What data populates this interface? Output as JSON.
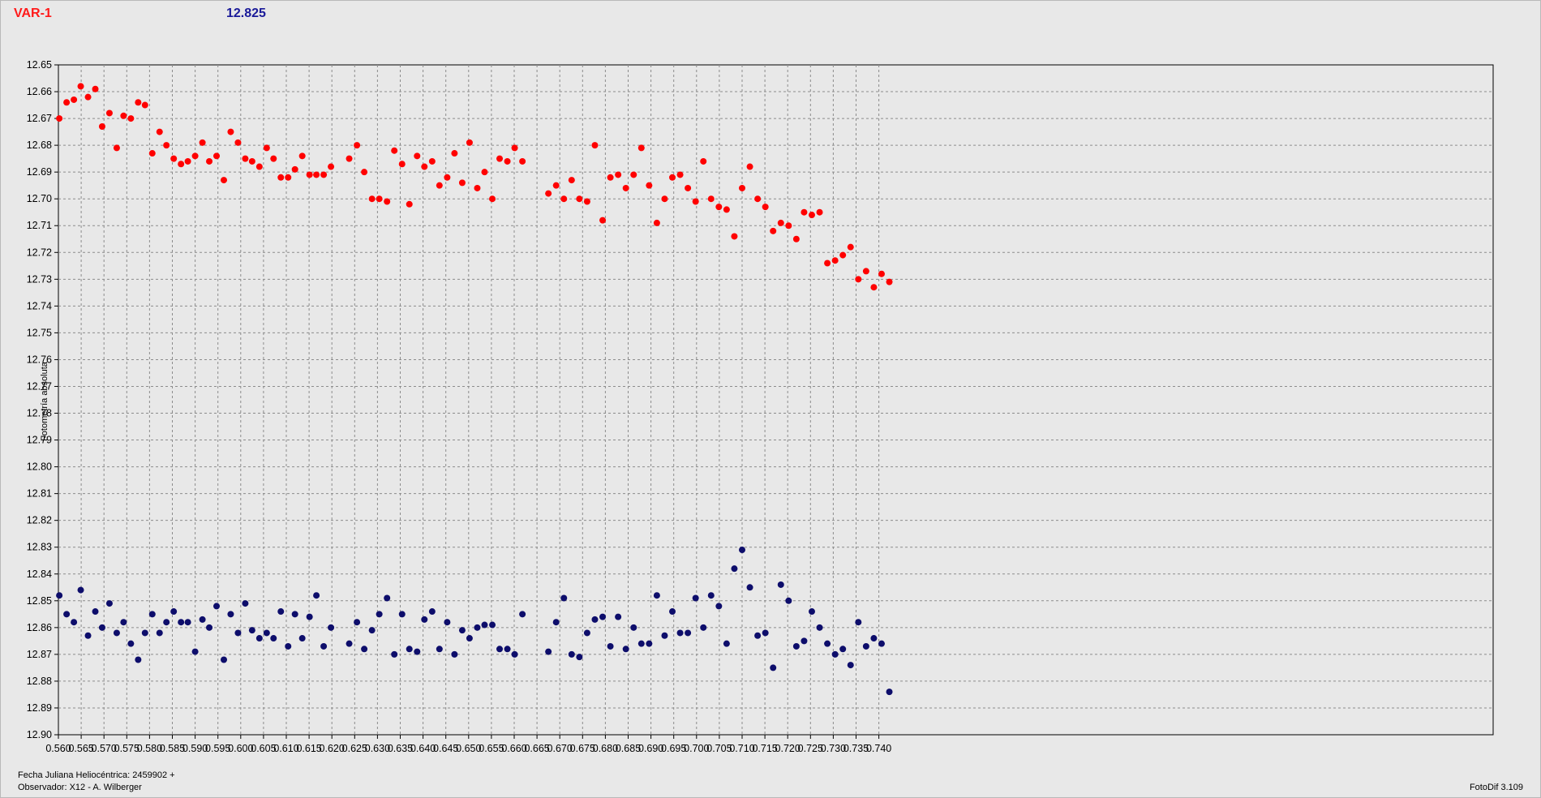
{
  "header": {
    "variable_label": "VAR-1",
    "reference_value": "12.825"
  },
  "footer": {
    "date_label": "Fecha Juliana Heliocéntrica: 2459902 +",
    "observer_label": "Observador: X12 - A. Wilberger",
    "software": "FotoDif 3.109"
  },
  "colors": {
    "variable_series": "#ff0000",
    "comparison_series": "#0d0d6b",
    "grid": "#8c8c8c",
    "background": "#e8e8e8"
  },
  "chart_data": {
    "type": "scatter",
    "ylabel": "Fotometría absoluta",
    "xlim": [
      0.56,
      0.7435
    ],
    "ylim": [
      12.65,
      12.9
    ],
    "y_inverted": true,
    "grid": true,
    "x_ticks": [
      "0.560",
      "0.565",
      "0.570",
      "0.575",
      "0.580",
      "0.585",
      "0.590",
      "0.595",
      "0.600",
      "0.605",
      "0.610",
      "0.615",
      "0.620",
      "0.625",
      "0.630",
      "0.635",
      "0.640",
      "0.645",
      "0.650",
      "0.655",
      "0.660",
      "0.665",
      "0.670",
      "0.675",
      "0.680",
      "0.685",
      "0.690",
      "0.695",
      "0.700",
      "0.705",
      "0.710",
      "0.715",
      "0.720",
      "0.725",
      "0.730",
      "0.735",
      "0.740"
    ],
    "y_ticks": [
      "12.65",
      "12.66",
      "12.67",
      "12.68",
      "12.69",
      "12.70",
      "12.71",
      "12.72",
      "12.73",
      "12.74",
      "12.75",
      "12.76",
      "12.77",
      "12.78",
      "12.79",
      "12.80",
      "12.81",
      "12.82",
      "12.83",
      "12.84",
      "12.85",
      "12.86",
      "12.87",
      "12.88",
      "12.89",
      "12.90"
    ],
    "series": [
      {
        "color": "#ff0000",
        "x": [
          0.5602,
          0.5618,
          0.5634,
          0.5649,
          0.5665,
          0.5681,
          0.5696,
          0.5712,
          0.5728,
          0.5743,
          0.5759,
          0.5775,
          0.579,
          0.5806,
          0.5822,
          0.5837,
          0.5853,
          0.5869,
          0.5884,
          0.59,
          0.5916,
          0.5931,
          0.5947,
          0.5963,
          0.5978,
          0.5994,
          0.601,
          0.6025,
          0.6041,
          0.6057,
          0.6072,
          0.6088,
          0.6104,
          0.6119,
          0.6135,
          0.6151,
          0.6166,
          0.6182,
          0.6198,
          0.6238,
          0.6255,
          0.6271,
          0.6288,
          0.6304,
          0.6321,
          0.6337,
          0.6354,
          0.637,
          0.6387,
          0.6403,
          0.642,
          0.6436,
          0.6453,
          0.6469,
          0.6486,
          0.6502,
          0.6519,
          0.6535,
          0.6552,
          0.6568,
          0.6585,
          0.6601,
          0.6618,
          0.6675,
          0.6692,
          0.6709,
          0.6726,
          0.6743,
          0.676,
          0.6777,
          0.6794,
          0.6811,
          0.6828,
          0.6845,
          0.6862,
          0.6879,
          0.6896,
          0.6913,
          0.693,
          0.6947,
          0.6964,
          0.6981,
          0.6998,
          0.7015,
          0.7032,
          0.7049,
          0.7066,
          0.7083,
          0.71,
          0.7117,
          0.7134,
          0.7151,
          0.7168,
          0.7185,
          0.7202,
          0.7219,
          0.7236,
          0.7253,
          0.727,
          0.7287,
          0.7304,
          0.7321,
          0.7338,
          0.7355,
          0.7372,
          0.7389,
          0.7406,
          0.7423
        ],
        "y": [
          12.67,
          12.664,
          12.663,
          12.658,
          12.662,
          12.659,
          12.673,
          12.668,
          12.681,
          12.669,
          12.67,
          12.664,
          12.665,
          12.683,
          12.675,
          12.68,
          12.685,
          12.687,
          12.686,
          12.684,
          12.679,
          12.686,
          12.684,
          12.693,
          12.675,
          12.679,
          12.685,
          12.686,
          12.688,
          12.681,
          12.685,
          12.692,
          12.692,
          12.689,
          12.684,
          12.691,
          12.691,
          12.691,
          12.688,
          12.685,
          12.68,
          12.69,
          12.7,
          12.7,
          12.701,
          12.682,
          12.687,
          12.702,
          12.684,
          12.688,
          12.686,
          12.695,
          12.692,
          12.683,
          12.694,
          12.679,
          12.696,
          12.69,
          12.7,
          12.685,
          12.686,
          12.681,
          12.686,
          12.698,
          12.695,
          12.7,
          12.693,
          12.7,
          12.701,
          12.68,
          12.708,
          12.692,
          12.691,
          12.696,
          12.691,
          12.681,
          12.695,
          12.709,
          12.7,
          12.692,
          12.691,
          12.696,
          12.701,
          12.686,
          12.7,
          12.703,
          12.704,
          12.714,
          12.696,
          12.688,
          12.7,
          12.703,
          12.712,
          12.709,
          12.71,
          12.715,
          12.705,
          12.706,
          12.705,
          12.724,
          12.723,
          12.721,
          12.718,
          12.73,
          12.727,
          12.733,
          12.728,
          12.731
        ]
      },
      {
        "color": "#0d0d6b",
        "x": [
          0.5602,
          0.5618,
          0.5634,
          0.5649,
          0.5665,
          0.5681,
          0.5696,
          0.5712,
          0.5728,
          0.5743,
          0.5759,
          0.5775,
          0.579,
          0.5806,
          0.5822,
          0.5837,
          0.5853,
          0.5869,
          0.5884,
          0.59,
          0.5916,
          0.5931,
          0.5947,
          0.5963,
          0.5978,
          0.5994,
          0.601,
          0.6025,
          0.6041,
          0.6057,
          0.6072,
          0.6088,
          0.6104,
          0.6119,
          0.6135,
          0.6151,
          0.6166,
          0.6182,
          0.6198,
          0.6238,
          0.6255,
          0.6271,
          0.6288,
          0.6304,
          0.6321,
          0.6337,
          0.6354,
          0.637,
          0.6387,
          0.6403,
          0.642,
          0.6436,
          0.6453,
          0.6469,
          0.6486,
          0.6502,
          0.6519,
          0.6535,
          0.6552,
          0.6568,
          0.6585,
          0.6601,
          0.6618,
          0.6675,
          0.6692,
          0.6709,
          0.6726,
          0.6743,
          0.676,
          0.6777,
          0.6794,
          0.6811,
          0.6828,
          0.6845,
          0.6862,
          0.6879,
          0.6896,
          0.6913,
          0.693,
          0.6947,
          0.6964,
          0.6981,
          0.6998,
          0.7015,
          0.7032,
          0.7049,
          0.7066,
          0.7083,
          0.71,
          0.7117,
          0.7134,
          0.7151,
          0.7168,
          0.7185,
          0.7202,
          0.7219,
          0.7236,
          0.7253,
          0.727,
          0.7287,
          0.7304,
          0.7321,
          0.7338,
          0.7355,
          0.7372,
          0.7389,
          0.7406,
          0.7423
        ],
        "y": [
          12.848,
          12.855,
          12.858,
          12.846,
          12.863,
          12.854,
          12.86,
          12.851,
          12.862,
          12.858,
          12.866,
          12.872,
          12.862,
          12.855,
          12.862,
          12.858,
          12.854,
          12.858,
          12.858,
          12.869,
          12.857,
          12.86,
          12.852,
          12.872,
          12.855,
          12.862,
          12.851,
          12.861,
          12.864,
          12.862,
          12.864,
          12.854,
          12.867,
          12.855,
          12.864,
          12.856,
          12.848,
          12.867,
          12.86,
          12.866,
          12.858,
          12.868,
          12.861,
          12.855,
          12.849,
          12.87,
          12.855,
          12.868,
          12.869,
          12.857,
          12.854,
          12.868,
          12.858,
          12.87,
          12.861,
          12.864,
          12.86,
          12.859,
          12.859,
          12.868,
          12.868,
          12.87,
          12.855,
          12.869,
          12.858,
          12.849,
          12.87,
          12.871,
          12.862,
          12.857,
          12.856,
          12.867,
          12.856,
          12.868,
          12.86,
          12.866,
          12.866,
          12.848,
          12.863,
          12.854,
          12.862,
          12.862,
          12.849,
          12.86,
          12.848,
          12.852,
          12.866,
          12.838,
          12.831,
          12.845,
          12.863,
          12.862,
          12.875,
          12.844,
          12.85,
          12.867,
          12.865,
          12.854,
          12.86,
          12.866,
          12.87,
          12.868,
          12.874,
          12.858,
          12.867,
          12.864,
          12.866,
          12.884
        ]
      }
    ]
  }
}
